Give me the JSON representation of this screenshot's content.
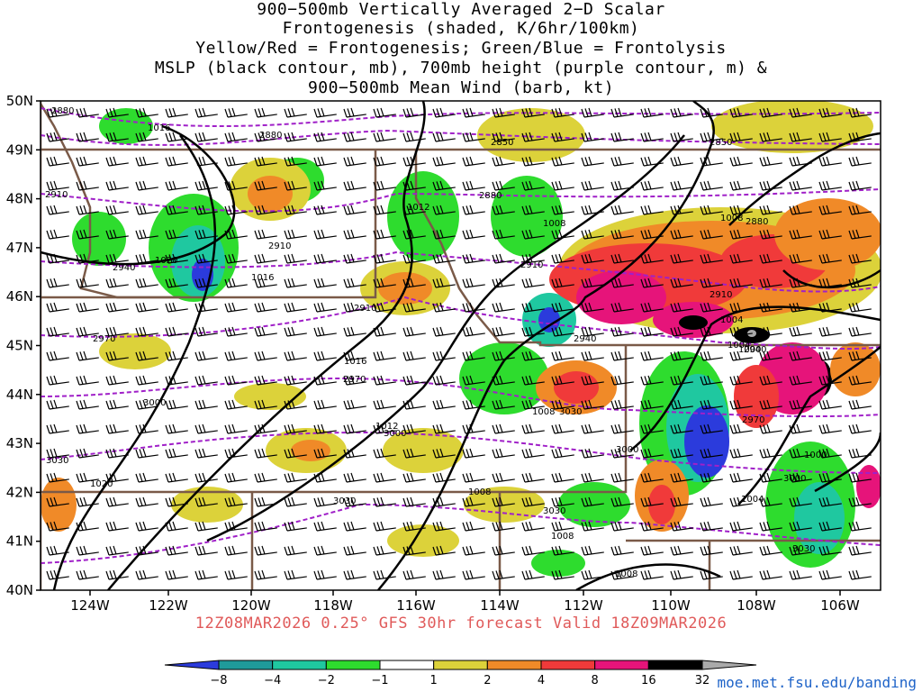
{
  "title_lines": [
    "900−500mb Vertically Averaged 2−D Scalar",
    "Frontogenesis (shaded, K/6hr/100km)",
    "Yellow/Red = Frontogenesis;  Green/Blue = Frontolysis",
    "MSLP (black contour, mb), 700mb height (purple contour, m) &",
    "900−500mb Mean Wind (barb, kt)"
  ],
  "lat_labels": [
    "50N",
    "49N",
    "48N",
    "47N",
    "46N",
    "45N",
    "44N",
    "43N",
    "42N",
    "41N",
    "40N"
  ],
  "lon_labels": [
    "124W",
    "122W",
    "120W",
    "118W",
    "116W",
    "114W",
    "112W",
    "110W",
    "108W",
    "106W"
  ],
  "valid_text": "12Z08MAR2026 0.25° GFS 30hr forecast Valid 18Z09MAR2026",
  "credit": "moe.met.fsu.edu/banding",
  "colorbar": {
    "labels": [
      "−8",
      "−4",
      "−2",
      "−1",
      "1",
      "2",
      "4",
      "8",
      "16",
      "32"
    ],
    "colors": [
      "#2b3bdc",
      "#1f9a9a",
      "#1fc8a0",
      "#2edc2e",
      "#ffffff",
      "#dcd23a",
      "#f08a28",
      "#f03a3a",
      "#e6147a",
      "#000000",
      "#aaaaaa"
    ]
  },
  "colors": {
    "mslp": "#000000",
    "height700": "#a020c8",
    "borders": "#7a5a48"
  },
  "mslp_labels": [
    "1016",
    "1012",
    "1008",
    "1008",
    "1020",
    "1016",
    "1016",
    "1012",
    "1008",
    "1004",
    "1004",
    "1000",
    "1000",
    "1004",
    "1008",
    "1008",
    "1020",
    "1008"
  ],
  "height_labels": [
    "2880",
    "2880",
    "2850",
    "2850",
    "2910",
    "2880",
    "2880",
    "2910",
    "2910",
    "2940",
    "2910",
    "2910",
    "2970",
    "2940",
    "2940",
    "2970",
    "3000",
    "3000",
    "3000",
    "2970",
    "3030",
    "3030",
    "3030",
    "3030",
    "3030",
    "3000"
  ]
}
